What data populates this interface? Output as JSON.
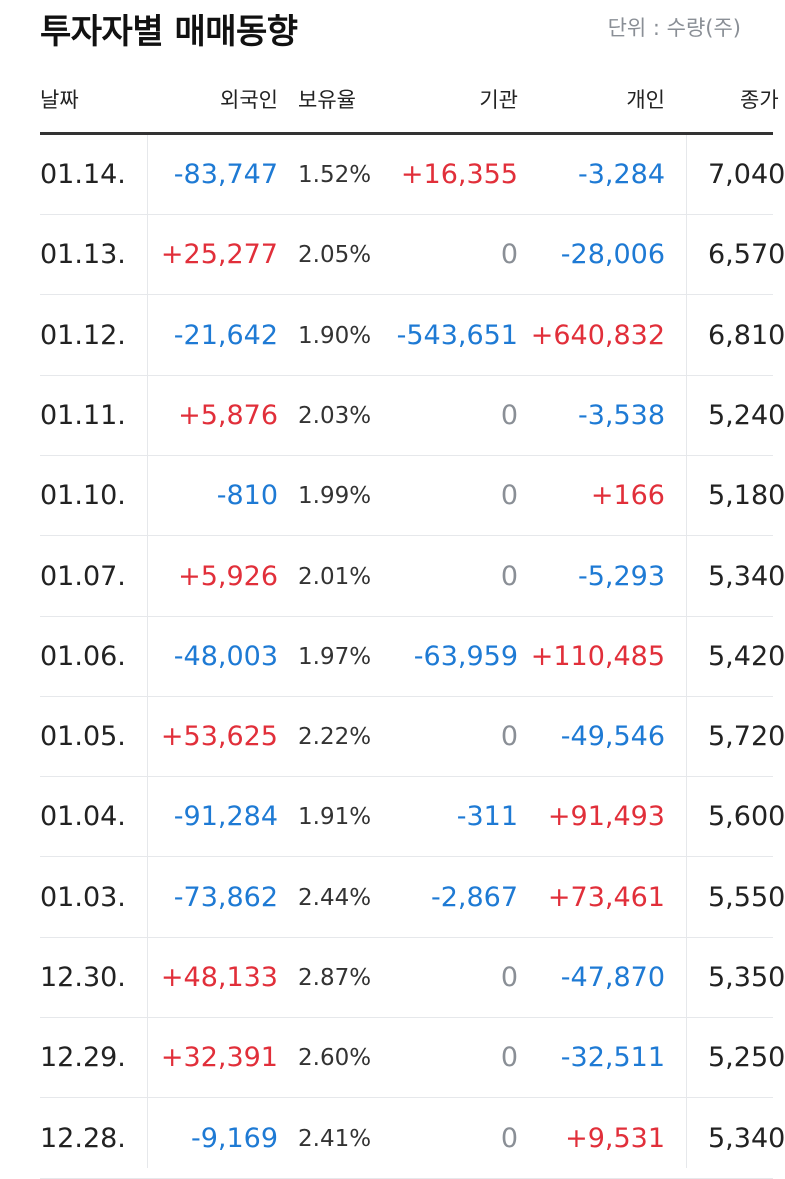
{
  "title": "투자자별 매매동향",
  "unit": "단위 : 수량(주)",
  "headers": {
    "date": "날짜",
    "foreign": "외국인",
    "holding": "보유율",
    "institution": "기관",
    "individual": "개인",
    "close": "종가"
  },
  "colors": {
    "up": "#e12f3a",
    "down": "#1e7ad4",
    "zero": "#8a8f96"
  },
  "rows": [
    {
      "date": "01.14.",
      "foreign": "-83,747",
      "holding": "1.52%",
      "institution": "+16,355",
      "individual": "-3,284",
      "close": "7,040"
    },
    {
      "date": "01.13.",
      "foreign": "+25,277",
      "holding": "2.05%",
      "institution": "0",
      "individual": "-28,006",
      "close": "6,570"
    },
    {
      "date": "01.12.",
      "foreign": "-21,642",
      "holding": "1.90%",
      "institution": "-543,651",
      "individual": "+640,832",
      "close": "6,810"
    },
    {
      "date": "01.11.",
      "foreign": "+5,876",
      "holding": "2.03%",
      "institution": "0",
      "individual": "-3,538",
      "close": "5,240"
    },
    {
      "date": "01.10.",
      "foreign": "-810",
      "holding": "1.99%",
      "institution": "0",
      "individual": "+166",
      "close": "5,180"
    },
    {
      "date": "01.07.",
      "foreign": "+5,926",
      "holding": "2.01%",
      "institution": "0",
      "individual": "-5,293",
      "close": "5,340"
    },
    {
      "date": "01.06.",
      "foreign": "-48,003",
      "holding": "1.97%",
      "institution": "-63,959",
      "individual": "+110,485",
      "close": "5,420"
    },
    {
      "date": "01.05.",
      "foreign": "+53,625",
      "holding": "2.22%",
      "institution": "0",
      "individual": "-49,546",
      "close": "5,720"
    },
    {
      "date": "01.04.",
      "foreign": "-91,284",
      "holding": "1.91%",
      "institution": "-311",
      "individual": "+91,493",
      "close": "5,600"
    },
    {
      "date": "01.03.",
      "foreign": "-73,862",
      "holding": "2.44%",
      "institution": "-2,867",
      "individual": "+73,461",
      "close": "5,550"
    },
    {
      "date": "12.30.",
      "foreign": "+48,133",
      "holding": "2.87%",
      "institution": "0",
      "individual": "-47,870",
      "close": "5,350"
    },
    {
      "date": "12.29.",
      "foreign": "+32,391",
      "holding": "2.60%",
      "institution": "0",
      "individual": "-32,511",
      "close": "5,250"
    },
    {
      "date": "12.28.",
      "foreign": "-9,169",
      "holding": "2.41%",
      "institution": "0",
      "individual": "+9,531",
      "close": "5,340"
    }
  ]
}
